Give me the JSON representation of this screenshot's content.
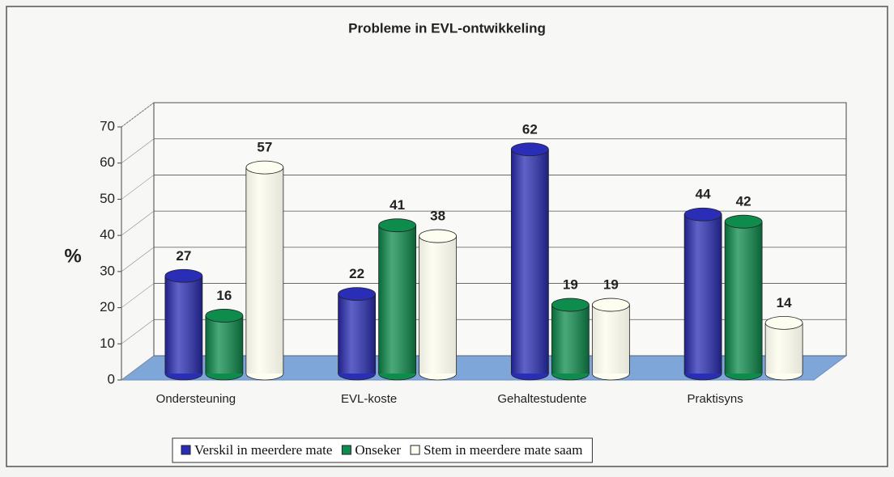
{
  "chart_data": {
    "type": "bar3d",
    "title": "Probleme in EVL-ontwikkeling",
    "ylabel": "%",
    "categories": [
      "Ondersteuning",
      "EVL-koste",
      "Gehaltestudente",
      "Praktisyns"
    ],
    "series": [
      {
        "name": "Verskil in meerdere mate",
        "color": "#2a2db5",
        "values": [
          27,
          22,
          62,
          44
        ]
      },
      {
        "name": "Onseker",
        "color": "#0d8c4c",
        "values": [
          16,
          41,
          19,
          42
        ]
      },
      {
        "name": "Stem in meerdere mate saam",
        "color": "#fdfdf0",
        "values": [
          57,
          38,
          19,
          14
        ]
      }
    ],
    "ylim": [
      0,
      70
    ],
    "yticks": [
      0,
      10,
      20,
      30,
      40,
      50,
      60,
      70
    ],
    "grid": true,
    "legend": "bottom"
  }
}
